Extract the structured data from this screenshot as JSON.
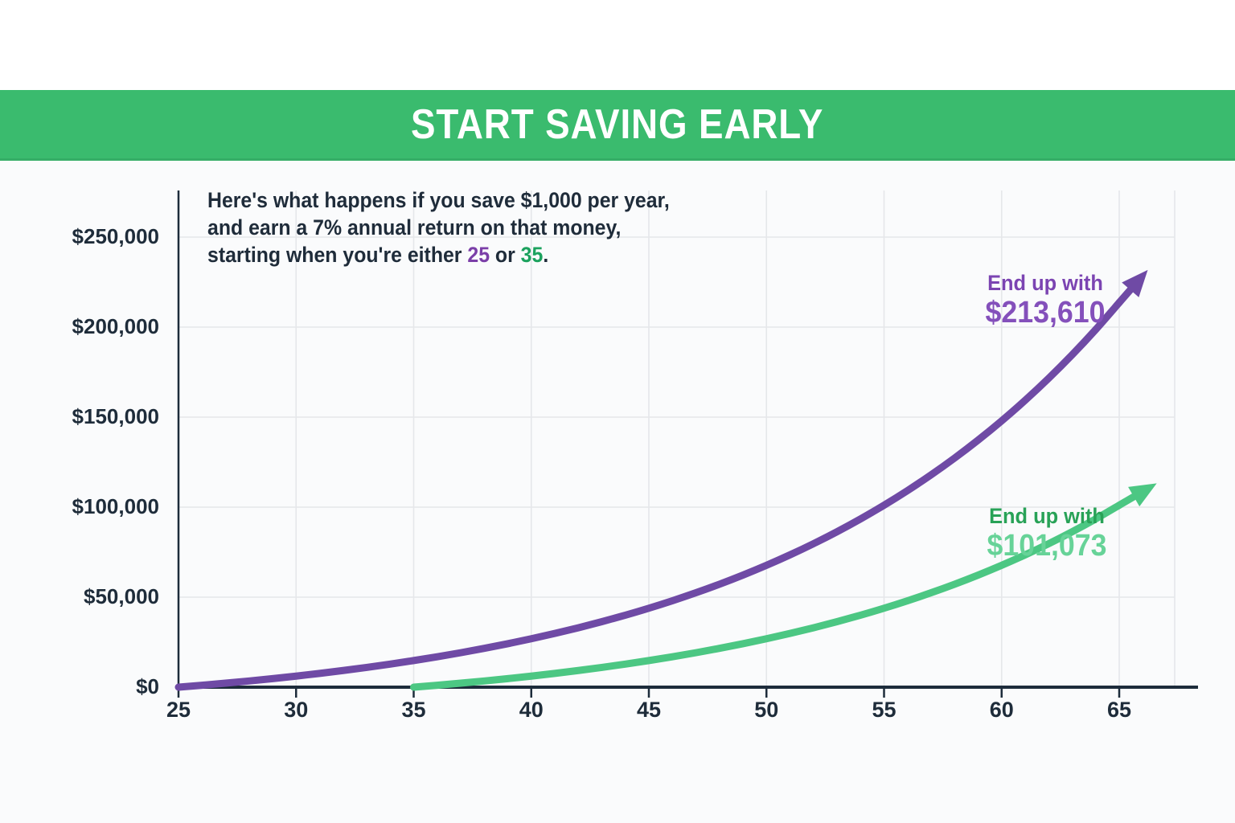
{
  "banner": {
    "title": "START SAVING EARLY",
    "bg": "#3abb6e",
    "title_color": "#ffffff"
  },
  "annotation": {
    "line1": "Here's what happens if you save $1,000 per year,",
    "line2": "and earn a 7% annual return on that money,",
    "line3_prefix": "starting when you're either ",
    "age_early": "25",
    "age_early_color": "#7b3fa8",
    "line3_mid": " or ",
    "age_late": "35",
    "age_late_color": "#1ca25e",
    "line3_suffix": ".",
    "text_color": "#1f2c3a"
  },
  "chart_data": {
    "type": "line",
    "title": "START SAVING EARLY",
    "grid": true,
    "x_ticks": [
      25,
      30,
      35,
      40,
      45,
      50,
      55,
      60,
      65
    ],
    "y_ticks": [
      {
        "value": 0,
        "label": "$0"
      },
      {
        "value": 50000,
        "label": "$50,000"
      },
      {
        "value": 100000,
        "label": "$100,000"
      },
      {
        "value": 150000,
        "label": "$150,000"
      },
      {
        "value": 200000,
        "label": "$200,000"
      },
      {
        "value": 250000,
        "label": "$250,000"
      }
    ],
    "xlim": [
      25,
      68
    ],
    "ylim": [
      0,
      275000
    ],
    "assumptions": {
      "annual_saving_label": "$1,000 per year",
      "annual_return_label": "7% annual return"
    },
    "series": [
      {
        "name": "Start saving at 25",
        "color": "#6f4aa5",
        "label_color": "#7b44b2",
        "value_color": "#8450bb",
        "end_label": "End up with",
        "end_value_label": "$213,610",
        "end_value": 213610,
        "start_age": 25,
        "ages": [
          25,
          26,
          27,
          28,
          29,
          30,
          31,
          32,
          33,
          34,
          35,
          36,
          37,
          38,
          39,
          40,
          41,
          42,
          43,
          44,
          45,
          46,
          47,
          48,
          49,
          50,
          51,
          52,
          53,
          54,
          55,
          56,
          57,
          58,
          59,
          60,
          61,
          62,
          63,
          64,
          65
        ],
        "values": [
          0,
          1070,
          2215,
          3440,
          4751,
          6153,
          7654,
          9260,
          10978,
          12816,
          14784,
          16888,
          19141,
          21550,
          24129,
          26888,
          29840,
          32999,
          36379,
          39996,
          43865,
          48006,
          52436,
          57177,
          62249,
          67676,
          73484,
          79698,
          86347,
          93461,
          101073,
          109218,
          117933,
          127259,
          137237,
          147913,
          159337,
          171561,
          184640,
          198635,
          213610
        ]
      },
      {
        "name": "Start saving at 35",
        "color": "#4cc783",
        "label_color": "#28a257",
        "value_color": "#67d398",
        "end_label": "End up with",
        "end_value_label": "$101,073",
        "end_value": 101073,
        "start_age": 35,
        "ages": [
          35,
          36,
          37,
          38,
          39,
          40,
          41,
          42,
          43,
          44,
          45,
          46,
          47,
          48,
          49,
          50,
          51,
          52,
          53,
          54,
          55,
          56,
          57,
          58,
          59,
          60,
          61,
          62,
          63,
          64,
          65
        ],
        "values": [
          0,
          1070,
          2215,
          3440,
          4751,
          6153,
          7654,
          9260,
          10978,
          12816,
          14784,
          16888,
          19141,
          21550,
          24129,
          26888,
          29840,
          32999,
          36379,
          39996,
          43865,
          48006,
          52436,
          57177,
          62249,
          67676,
          73484,
          79698,
          86347,
          93461,
          101073
        ]
      }
    ]
  }
}
